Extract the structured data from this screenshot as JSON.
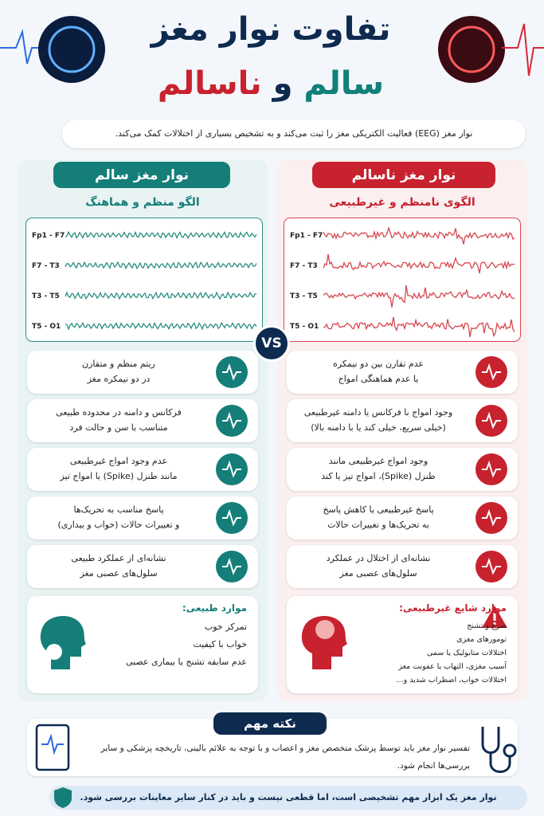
{
  "header": {
    "title_line1": "تفاوت نوار مغز",
    "title_healthy": "سالم",
    "title_and": "و",
    "title_unhealthy": "ناسالم",
    "intro": "نوار مغز (EEG) فعالیت الکتریکی مغز را ثبت می‌کند و به تشخیص بسیاری از اختلالات کمک می‌کند."
  },
  "vs": "VS",
  "healthy": {
    "title": "نوار مغز سالم",
    "subtitle": "الگو منظم و هماهنگ",
    "channels": [
      "Fp1 - F7",
      "F7 - T3",
      "T3 - T5",
      "T5 - O1"
    ],
    "items": [
      [
        "ریتم منظم و متقارن",
        "در دو نیمکره مغز"
      ],
      [
        "فرکانس و دامنه در محدوده طبیعی",
        "متناسب با سن و حالت فرد"
      ],
      [
        "عدم وجود امواج غیرطبیعی",
        "مانند طنزل (Spike) یا امواج تیز"
      ],
      [
        "پاسخ مناسب به تحریک‌ها",
        "و تغییرات حالات (خواب و بیداری)"
      ],
      [
        "نشانه‌ای از عملکرد طبیعی",
        "سلول‌های عصبی مغز"
      ]
    ],
    "cases_title": "موارد طبیعی:",
    "cases": [
      "تمرکز خوب",
      "خواب با کیفیت",
      "عدم سابقه تشنج یا بیماری عصبی"
    ]
  },
  "unhealthy": {
    "title": "نوار مغز ناسالم",
    "subtitle": "الگوی نامنظم و غیرطبیعی",
    "channels": [
      "Fp1 - F7",
      "F7 - T3",
      "T3 - T5",
      "T5 - O1"
    ],
    "items": [
      [
        "عدم تقارن بین دو نیمکره",
        "یا عدم هماهنگی امواج"
      ],
      [
        "وجود امواج با فرکانس یا دامنه غیرطبیعی",
        "(خیلی سریع، خیلی کند یا با دامنه بالا)"
      ],
      [
        "وجود امواج غیرطبیعی مانند",
        "طنزل (Spike)، امواج تیز یا کند"
      ],
      [
        "پاسخ غیرطبیعی یا کاهش پاسخ",
        "به تحریک‌ها و تغییرات حالات"
      ],
      [
        "نشانه‌ای از اختلال در عملکرد",
        "سلول‌های عصبی مغز"
      ]
    ],
    "cases_title": "موارد شایع غیرطبیعی:",
    "cases": [
      "صرع و تشنج",
      "تومورهای مغزی",
      "اختلالات متابولیک یا سمی",
      "آسیب مغزی، التهاب یا عفونت مغز",
      "اختلالات خواب، اضطراب شدید و..."
    ]
  },
  "note": {
    "title": "نکته مهم",
    "text": "تفسیر نوار مغز باید توسط پزشک متخصص مغز و اعصاب و با توجه به علائم بالینی، تاریخچه پزشکی و سایر بررسی‌ها انجام شود."
  },
  "footer": "نوار مغز یک ابزار مهم تشخیصی است، اما قطعی نیست و باید در کنار سایر معاینات بررسی شود."
}
